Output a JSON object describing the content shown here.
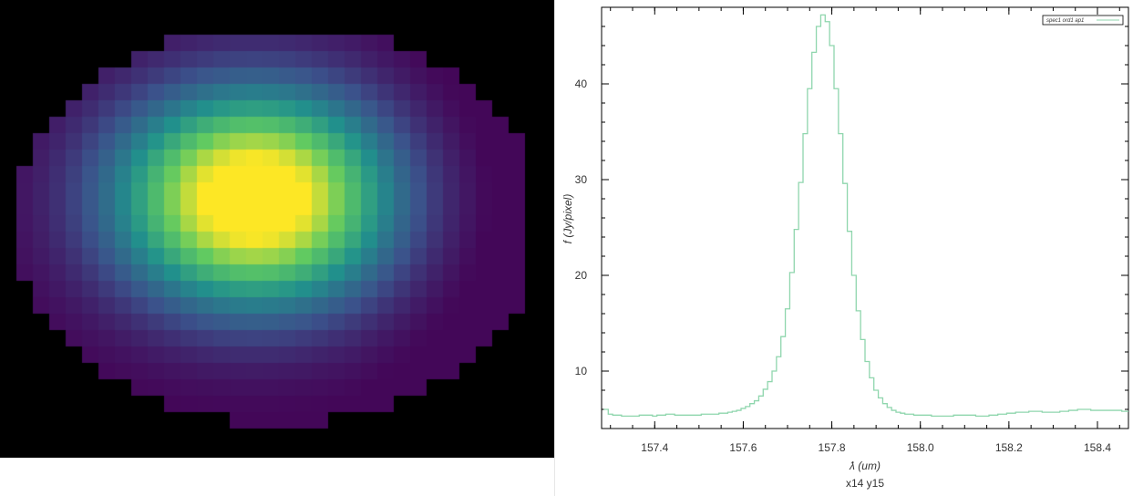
{
  "image": {
    "description_free_values": true,
    "colormap": [
      "#440154",
      "#3b528b",
      "#21918c",
      "#5ec962",
      "#fde725"
    ],
    "background": "#000000"
  },
  "chart_data": {
    "type": "line",
    "step": true,
    "series": [
      {
        "name": "spec1 ord1 ap1",
        "color": "#8fd6ad",
        "x": [
          157.29,
          157.3,
          157.31,
          157.32,
          157.33,
          157.34,
          157.35,
          157.36,
          157.37,
          157.38,
          157.39,
          157.4,
          157.41,
          157.42,
          157.43,
          157.44,
          157.45,
          157.46,
          157.47,
          157.48,
          157.49,
          157.5,
          157.51,
          157.52,
          157.53,
          157.54,
          157.55,
          157.56,
          157.57,
          157.58,
          157.59,
          157.6,
          157.61,
          157.62,
          157.63,
          157.64,
          157.65,
          157.66,
          157.67,
          157.68,
          157.69,
          157.7,
          157.71,
          157.72,
          157.73,
          157.74,
          157.75,
          157.76,
          157.77,
          157.78,
          157.79,
          157.8,
          157.81,
          157.82,
          157.83,
          157.84,
          157.85,
          157.86,
          157.87,
          157.88,
          157.89,
          157.9,
          157.91,
          157.92,
          157.93,
          157.94,
          157.95,
          157.96,
          157.97,
          157.98,
          157.99,
          158.0,
          158.01,
          158.02,
          158.03,
          158.04,
          158.05,
          158.06,
          158.07,
          158.08,
          158.09,
          158.1,
          158.11,
          158.12,
          158.13,
          158.14,
          158.15,
          158.16,
          158.17,
          158.18,
          158.19,
          158.2,
          158.21,
          158.22,
          158.23,
          158.24,
          158.25,
          158.26,
          158.27,
          158.28,
          158.29,
          158.3,
          158.31,
          158.32,
          158.33,
          158.34,
          158.35,
          158.36,
          158.37,
          158.38,
          158.39,
          158.4,
          158.41,
          158.42,
          158.43,
          158.44,
          158.45,
          158.46,
          158.47
        ],
        "y": [
          6.0,
          5.5,
          5.4,
          5.4,
          5.3,
          5.3,
          5.3,
          5.3,
          5.4,
          5.4,
          5.4,
          5.3,
          5.4,
          5.4,
          5.5,
          5.5,
          5.4,
          5.4,
          5.4,
          5.4,
          5.4,
          5.4,
          5.5,
          5.5,
          5.5,
          5.5,
          5.6,
          5.6,
          5.7,
          5.8,
          5.9,
          6.1,
          6.3,
          6.6,
          6.9,
          7.4,
          8.1,
          8.9,
          10.0,
          11.5,
          13.6,
          16.5,
          20.3,
          24.8,
          29.7,
          34.8,
          39.5,
          43.3,
          46.0,
          47.2,
          46.5,
          44.0,
          39.5,
          34.8,
          29.6,
          24.6,
          20.0,
          16.3,
          13.3,
          11.0,
          9.3,
          8.0,
          7.2,
          6.6,
          6.2,
          5.9,
          5.7,
          5.6,
          5.5,
          5.5,
          5.4,
          5.4,
          5.4,
          5.4,
          5.3,
          5.3,
          5.3,
          5.3,
          5.3,
          5.4,
          5.4,
          5.4,
          5.4,
          5.4,
          5.3,
          5.3,
          5.3,
          5.4,
          5.4,
          5.5,
          5.5,
          5.6,
          5.6,
          5.7,
          5.7,
          5.7,
          5.8,
          5.8,
          5.8,
          5.7,
          5.7,
          5.7,
          5.7,
          5.8,
          5.8,
          5.9,
          5.9,
          6.0,
          6.0,
          6.0,
          5.9,
          5.9,
          5.9,
          5.9,
          5.9,
          5.9,
          5.9,
          5.8,
          5.8
        ]
      }
    ],
    "xlabel": "ƛ (um)",
    "ylabel": "f (Jy/pixel)",
    "xlim": [
      157.28,
      158.47
    ],
    "ylim": [
      4,
      48
    ],
    "xticks": [
      157.4,
      157.6,
      157.8,
      158.0,
      158.2,
      158.4
    ],
    "xtick_labels": [
      "157.4",
      "157.6",
      "157.8",
      "158.0",
      "158.2",
      "158.4"
    ],
    "yticks": [
      10,
      20,
      30,
      40
    ],
    "ytick_labels": [
      "10",
      "20",
      "30",
      "40"
    ],
    "grid": false,
    "legend": "top-right"
  },
  "status": {
    "coords": "x14 y15"
  }
}
